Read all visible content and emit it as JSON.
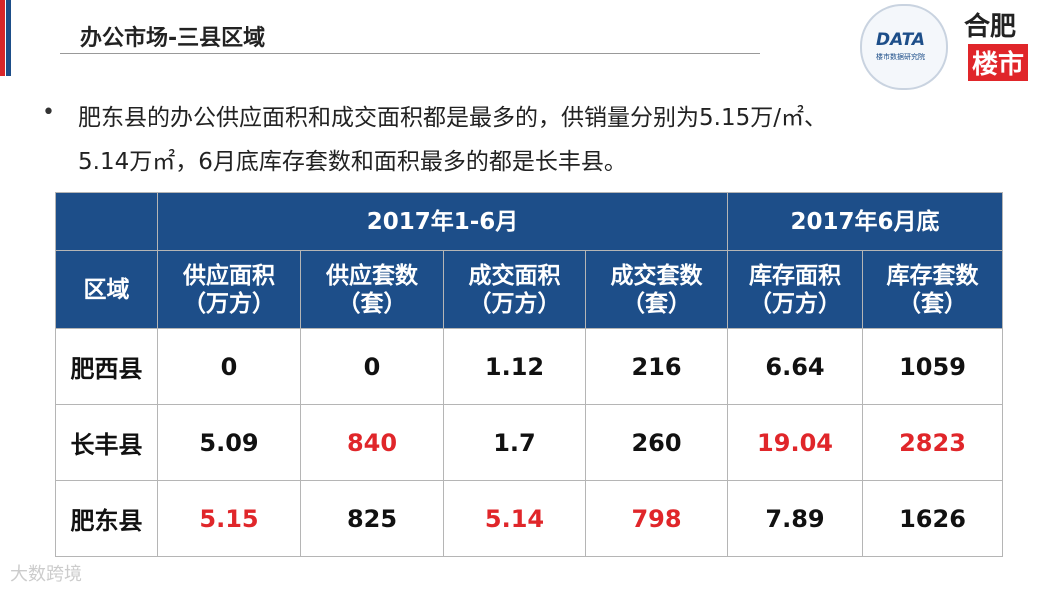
{
  "header": {
    "title": "办公市场-三县区域",
    "logo_left": {
      "brand": "DATA",
      "sub": "楼市数据研究院"
    },
    "logo_right": {
      "line1": "合肥",
      "line2": "楼市"
    }
  },
  "bullet": {
    "line1": "肥东县的办公供应面积和成交面积都是最多的，供销量分别为5.15万/㎡、",
    "line2": "5.14万㎡，6月底库存套数和面积最多的都是长丰县。"
  },
  "table": {
    "group_headers": [
      "2017年1-6月",
      "2017年6月底"
    ],
    "region_header": "区域",
    "columns": [
      {
        "name": "供应面积",
        "unit": "（万方）"
      },
      {
        "name": "供应套数",
        "unit": "（套）"
      },
      {
        "name": "成交面积",
        "unit": "（万方）"
      },
      {
        "name": "成交套数",
        "unit": "（套）"
      },
      {
        "name": "库存面积",
        "unit": "（万方）"
      },
      {
        "name": "库存套数",
        "unit": "（套）"
      }
    ],
    "rows": [
      {
        "region": "肥西县",
        "cells": [
          {
            "text": "0",
            "color": "#111111"
          },
          {
            "text": "0",
            "color": "#111111"
          },
          {
            "text": "1.12",
            "color": "#111111"
          },
          {
            "text": "216",
            "color": "#111111"
          },
          {
            "text": "6.64",
            "color": "#111111"
          },
          {
            "text": "1059",
            "color": "#111111"
          }
        ]
      },
      {
        "region": "长丰县",
        "cells": [
          {
            "text": "5.09",
            "color": "#111111"
          },
          {
            "text": "840",
            "color": "#e0262a"
          },
          {
            "text": "1.7",
            "color": "#111111"
          },
          {
            "text": "260",
            "color": "#111111"
          },
          {
            "text": "19.04",
            "color": "#e0262a"
          },
          {
            "text": "2823",
            "color": "#e0262a"
          }
        ]
      },
      {
        "region": "肥东县",
        "cells": [
          {
            "text": "5.15",
            "color": "#e0262a"
          },
          {
            "text": "825",
            "color": "#111111"
          },
          {
            "text": "5.14",
            "color": "#e0262a"
          },
          {
            "text": "798",
            "color": "#e0262a"
          },
          {
            "text": "7.89",
            "color": "#111111"
          },
          {
            "text": "1626",
            "color": "#111111"
          }
        ]
      }
    ]
  },
  "watermark": "大数跨境"
}
